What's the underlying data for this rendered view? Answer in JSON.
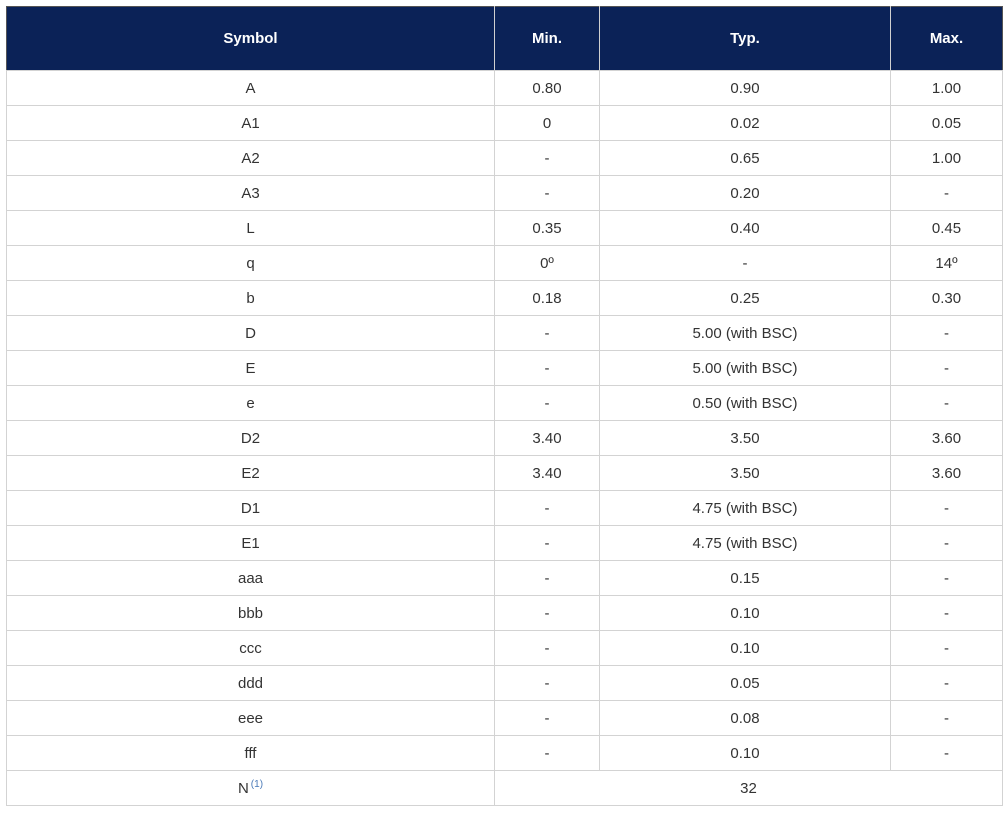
{
  "table": {
    "header": [
      "Symbol",
      "Min.",
      "Typ.",
      "Max."
    ],
    "rows": [
      [
        "A",
        "0.80",
        "0.90",
        "1.00"
      ],
      [
        "A1",
        "0",
        "0.02",
        "0.05"
      ],
      [
        "A2",
        "-",
        "0.65",
        "1.00"
      ],
      [
        "A3",
        "-",
        "0.20",
        "-"
      ],
      [
        "L",
        "0.35",
        "0.40",
        "0.45"
      ],
      [
        "q",
        "0º",
        "-",
        "14º"
      ],
      [
        "b",
        "0.18",
        "0.25",
        "0.30"
      ],
      [
        "D",
        "-",
        "5.00 (with BSC)",
        "-"
      ],
      [
        "E",
        "-",
        "5.00 (with BSC)",
        "-"
      ],
      [
        "e",
        "-",
        "0.50 (with BSC)",
        "-"
      ],
      [
        "D2",
        "3.40",
        "3.50",
        "3.60"
      ],
      [
        "E2",
        "3.40",
        "3.50",
        "3.60"
      ],
      [
        "D1",
        "-",
        "4.75 (with BSC)",
        "-"
      ],
      [
        "E1",
        "-",
        "4.75 (with BSC)",
        "-"
      ],
      [
        "aaa",
        "-",
        "0.15",
        "-"
      ],
      [
        "bbb",
        "-",
        "0.10",
        "-"
      ],
      [
        "ccc",
        "-",
        "0.10",
        "-"
      ],
      [
        "ddd",
        "-",
        "0.05",
        "-"
      ],
      [
        "eee",
        "-",
        "0.08",
        "-"
      ],
      [
        "fff",
        "-",
        "0.10",
        "-"
      ]
    ],
    "last_row": {
      "symbol": "N",
      "note": "(1)",
      "value": "32"
    }
  }
}
